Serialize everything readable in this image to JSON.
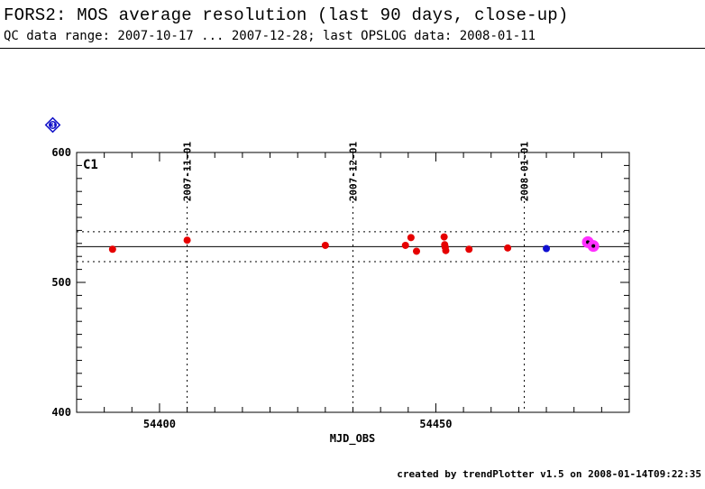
{
  "header": {
    "title": "FORS2: MOS average resolution (last 90 days, close-up)",
    "subtitle": "QC data range: 2007-10-17 ... 2007-12-28; last OPSLOG data: 2008-01-11"
  },
  "footer": {
    "text": "created by trendPlotter v1.5 on 2008-01-14T09:22:35"
  },
  "badge": {
    "label": "3",
    "color": "#1010c8"
  },
  "chart_data": {
    "type": "scatter",
    "panel_label": "C1",
    "xlabel": "MJD_OBS",
    "ylabel": "",
    "xlim": [
      54385,
      54485
    ],
    "ylim": [
      400,
      600
    ],
    "x_ticks": [
      54400,
      54450
    ],
    "y_ticks": [
      400,
      500,
      600
    ],
    "date_markers": [
      {
        "label": "2007-11-01",
        "x": 54405
      },
      {
        "label": "2007-12-01",
        "x": 54435
      },
      {
        "label": "2008-01-01",
        "x": 54466
      }
    ],
    "reference_lines": {
      "mean": 527.5,
      "upper": 539,
      "lower": 516
    },
    "grid": false,
    "series": [
      {
        "color": "#e60000",
        "points": [
          [
            54391.5,
            525.5
          ],
          [
            54405,
            532.5
          ],
          [
            54430,
            528.5
          ],
          [
            54444.5,
            528.5
          ],
          [
            54445.5,
            534.5
          ],
          [
            54446.5,
            524
          ],
          [
            54451.5,
            535
          ],
          [
            54451.6,
            529
          ],
          [
            54451.7,
            527
          ],
          [
            54451.8,
            524.5
          ],
          [
            54456,
            525.5
          ],
          [
            54463,
            526.5
          ]
        ]
      },
      {
        "color": "#1010d0",
        "points": [
          [
            54470,
            526
          ]
        ]
      },
      {
        "color": "#ff30ff",
        "marker": "dot-with-center",
        "points": [
          [
            54477.5,
            531
          ],
          [
            54478.5,
            528
          ]
        ]
      }
    ]
  }
}
